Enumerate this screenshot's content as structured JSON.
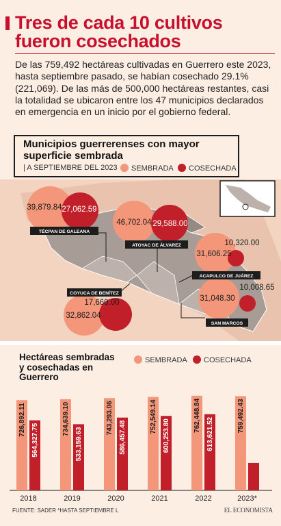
{
  "title": "Tres de cada 10 cultivos fueron cosechados",
  "intro": "De las 759,492 hectáreas cultivadas en Guerrero este 2023, hasta septiembre pasado, se habían cosechado 29.1% (221,069). De las más de 500,000 hectáreas restantes, casi la totalidad se ubicaron entre los 47 municipios declarados en emergencia en un inicio por el gobierno federal.",
  "map": {
    "title": "Municipios guerrerenses con mayor superficie sembrada",
    "subtitle": "| A SEPTIEMBRE DEL 2023",
    "legend_sown": "SEMBRADA",
    "legend_harvested": "COSECHADA",
    "municipios": [
      {
        "name": "TÉCPAN DE GALEANA",
        "sembrada": "39,879.84",
        "cosechada": "27,062.59"
      },
      {
        "name": "ATOYAC DE ÁLVAREZ",
        "sembrada": "46,702.04",
        "cosechada": "29,588.00"
      },
      {
        "name": "ACAPULCO DE JUÁREZ",
        "sembrada": "31,606.25",
        "cosechada": "10,320.00"
      },
      {
        "name": "SAN MARCOS",
        "sembrada": "31,048.30",
        "cosechada": "10,008.65"
      },
      {
        "name": "COYUCA DE BENÍTEZ",
        "sembrada": "32,862.04",
        "cosechada": "17,660.00"
      }
    ]
  },
  "chart_title": "Hectáreas sembradas y cosechadas en Guerrero",
  "chart_legend_sown": "SEMBRADA",
  "chart_legend_harvested": "COSECHADA",
  "chart_data": {
    "type": "bar",
    "categories": [
      "2018",
      "2019",
      "2020",
      "2021",
      "2022",
      "2023*"
    ],
    "series": [
      {
        "name": "SEMBRADA",
        "values": [
          726892.11,
          734639.1,
          743293.06,
          752549.14,
          762448.84,
          759492.43
        ],
        "labels": [
          "726,892.11",
          "734,639.10",
          "743,293.06",
          "752,549.14",
          "762,448.84",
          "759,492.43"
        ]
      },
      {
        "name": "COSECHADA",
        "values": [
          564327.75,
          533159.63,
          586457.48,
          600253.8,
          613621.52,
          221069
        ],
        "labels": [
          "564,327.75",
          "533,159.63",
          "586,457.48",
          "600,253.80",
          "613,621.52",
          ""
        ]
      }
    ]
  },
  "colors": {
    "sown": "#f4967a",
    "harvested": "#c11f2a",
    "accent": "#c8102e"
  },
  "footer": {
    "source": "FUENTE: SADER *HASTA SEPTIEMBRE L",
    "logo": "EL ECONOMISTA"
  }
}
